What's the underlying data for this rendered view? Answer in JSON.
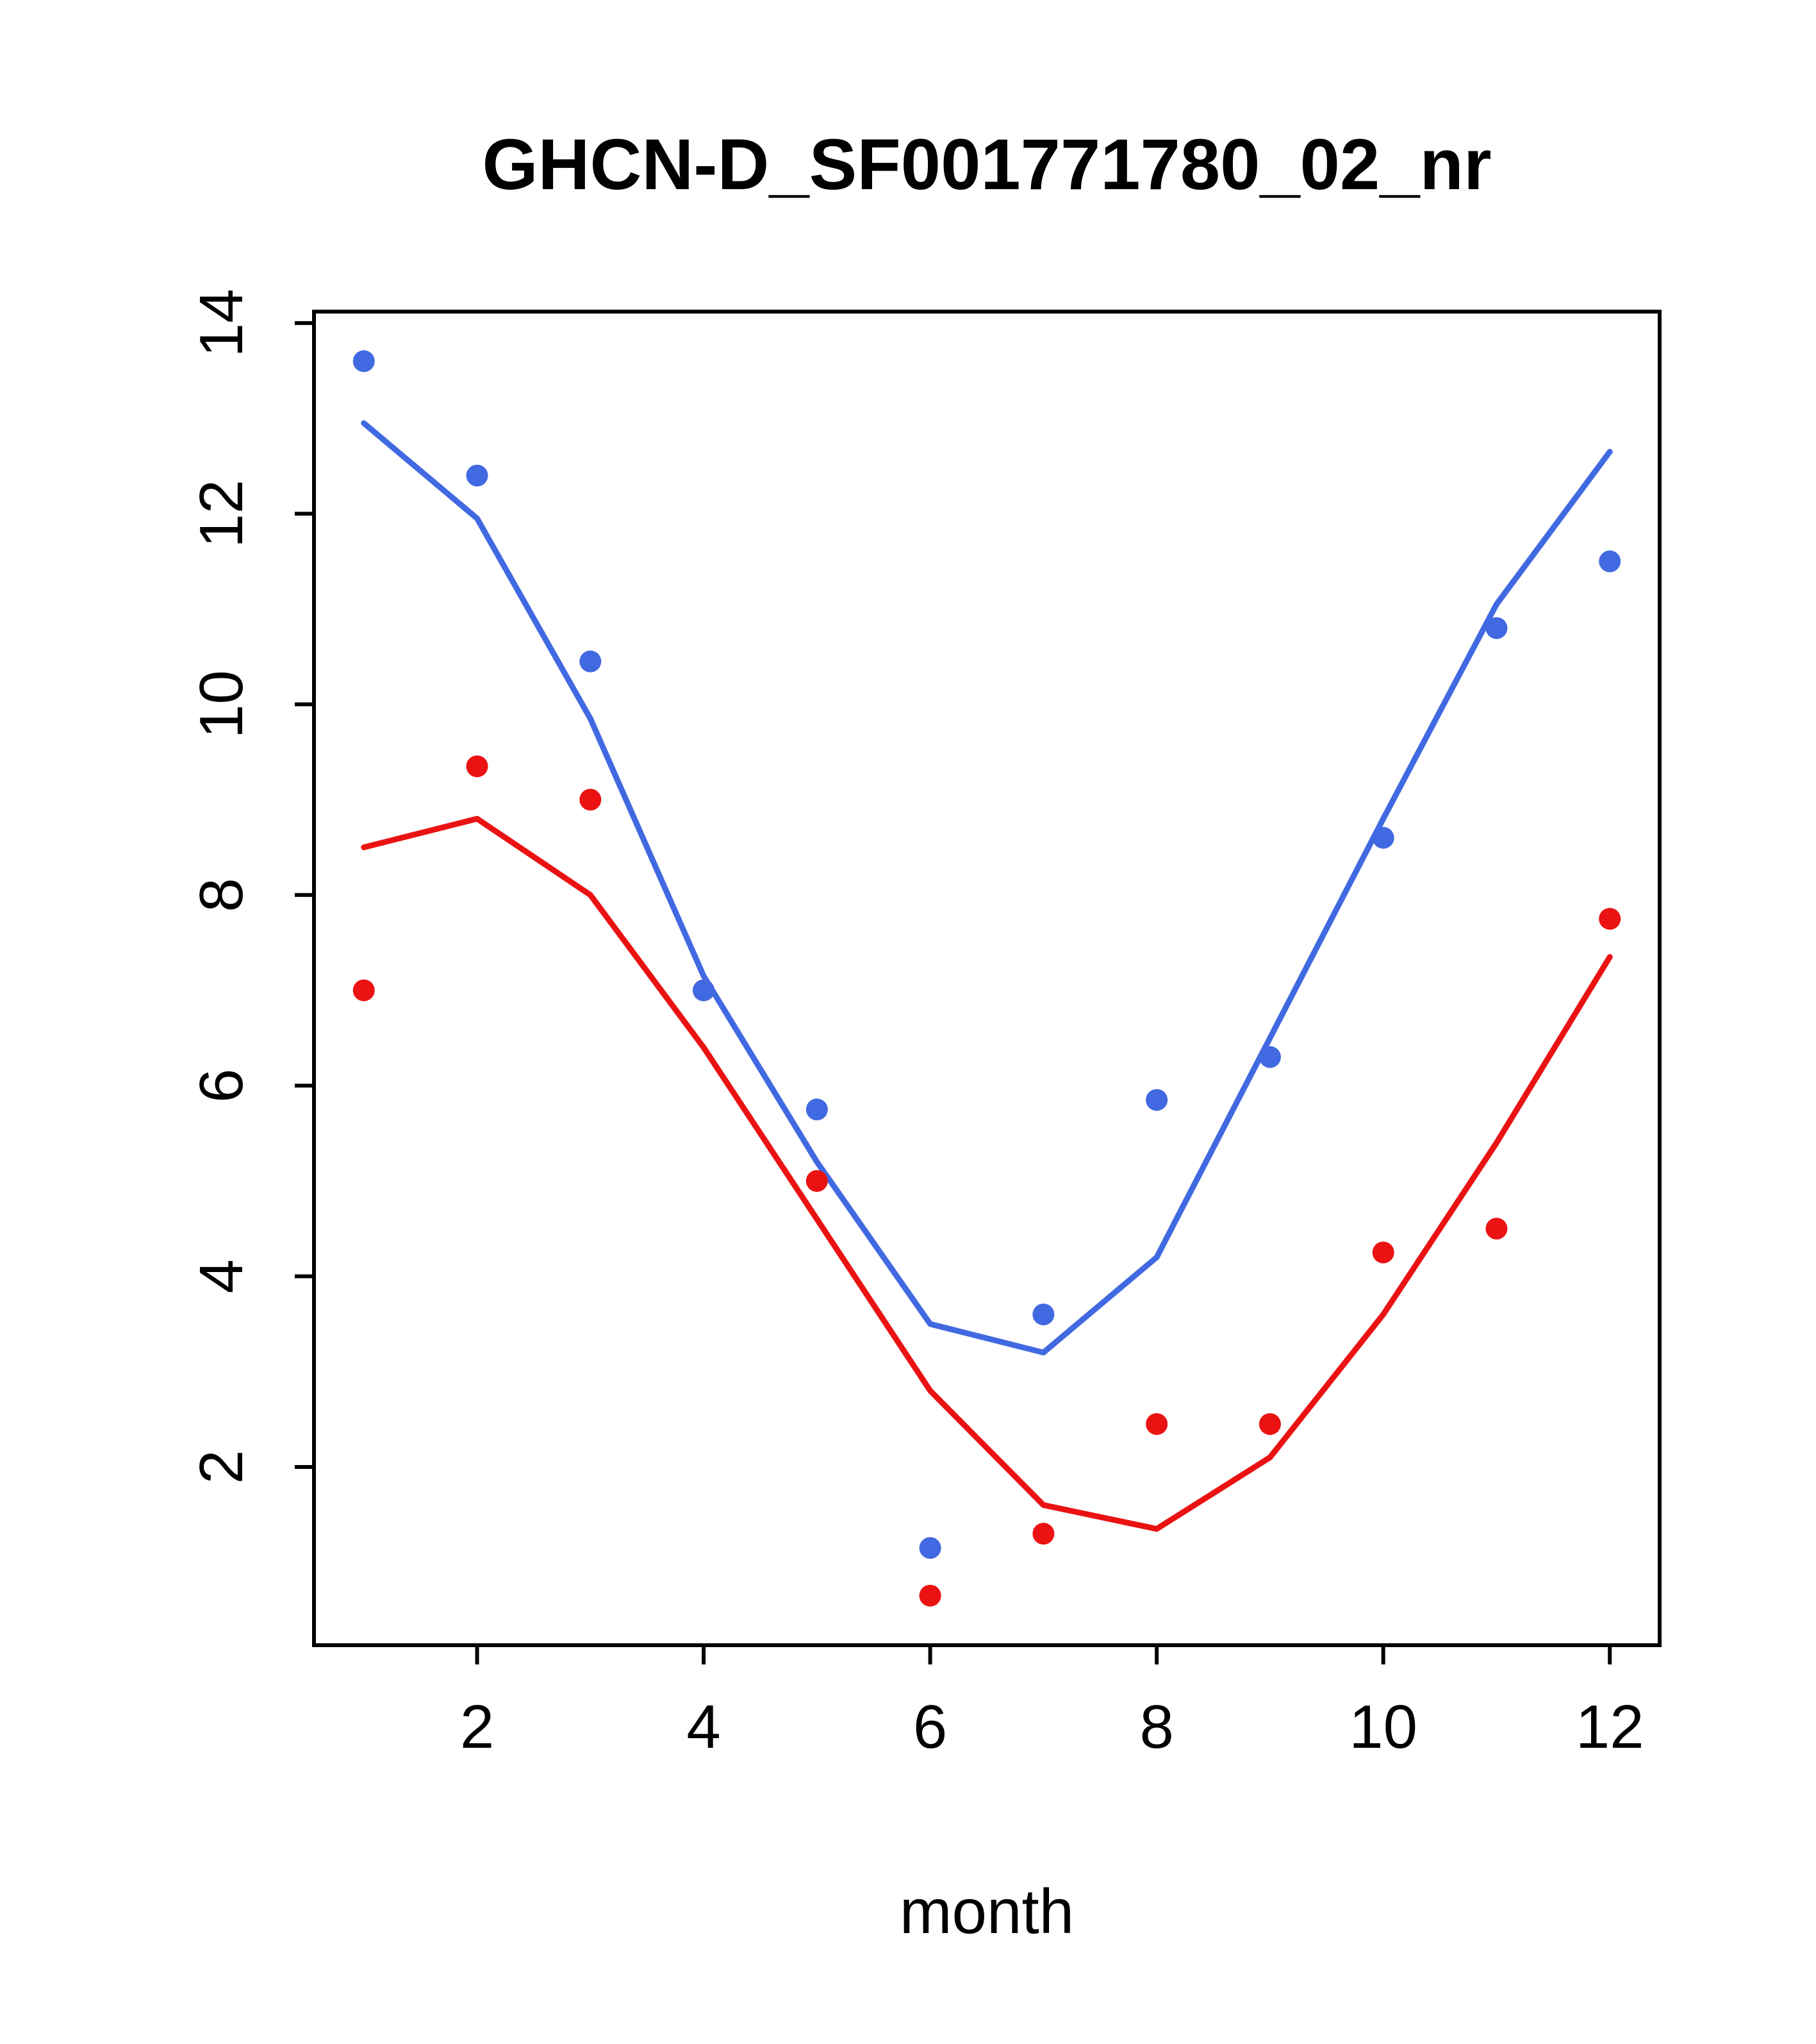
{
  "chart_data": {
    "type": "line",
    "title": "GHCN-D_SF001771780_02_nr",
    "xlabel": "month",
    "ylabel": "",
    "x": [
      1,
      2,
      3,
      4,
      5,
      6,
      7,
      8,
      9,
      10,
      11,
      12
    ],
    "xticks": [
      2,
      4,
      6,
      8,
      10,
      12
    ],
    "yticks": [
      2,
      4,
      6,
      8,
      10,
      12,
      14
    ],
    "xlim": [
      0.56,
      12.44
    ],
    "ylim": [
      0.13,
      14.12
    ],
    "grid": false,
    "legend": "none",
    "background": "#ffffff",
    "axis_color": "#000000",
    "series": [
      {
        "name": "red-line",
        "type": "line",
        "color": "#EA1212",
        "values": [
          8.5,
          8.8,
          8.0,
          6.4,
          4.6,
          2.8,
          1.6,
          1.35,
          2.1,
          3.6,
          5.4,
          7.35
        ]
      },
      {
        "name": "blue-line",
        "type": "line",
        "color": "#4169E1",
        "values": [
          12.95,
          11.95,
          9.85,
          7.15,
          5.2,
          3.5,
          3.2,
          4.2,
          6.5,
          8.8,
          11.05,
          12.65
        ]
      },
      {
        "name": "red-points",
        "type": "points",
        "color": "#EA1212",
        "values": [
          7.0,
          9.35,
          9.0,
          7.0,
          5.0,
          0.65,
          1.3,
          2.45,
          2.45,
          4.25,
          4.5,
          7.75
        ]
      },
      {
        "name": "blue-points",
        "type": "points",
        "color": "#4169E1",
        "values": [
          13.6,
          12.4,
          10.45,
          7.0,
          5.75,
          1.15,
          3.6,
          5.85,
          6.3,
          8.6,
          10.8,
          11.5
        ]
      }
    ]
  }
}
